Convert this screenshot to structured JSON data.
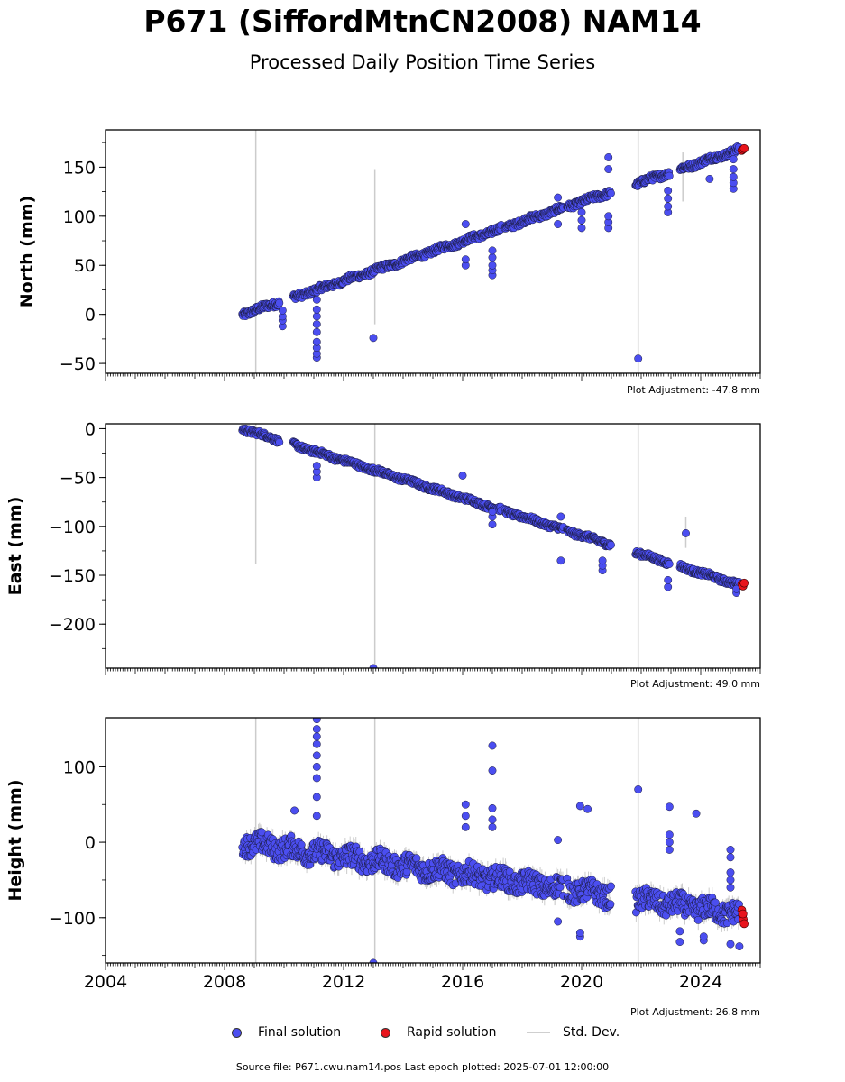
{
  "title": "P671 (SiffordMtnCN2008) NAM14",
  "subtitle": "Processed Daily Position Time Series",
  "colors": {
    "final": "#4b4ef0",
    "rapid": "#e8141c",
    "stddev": "#cccccc"
  },
  "chart_data": {
    "type": "scatter",
    "x_ticks": [
      "2004",
      "2008",
      "2012",
      "2016",
      "2020",
      "2024"
    ],
    "xlim": [
      2004.0,
      2026.0
    ],
    "panels": [
      {
        "ylabel": "North (mm)",
        "ylim": [
          -60,
          188
        ],
        "yticks": [
          150,
          100,
          50,
          0,
          -50
        ],
        "ytick_labels": [
          "150",
          "100",
          "50",
          "0",
          "−50"
        ],
        "plot_adjustment": "Plot Adjustment: -47.8 mm",
        "trend": [
          [
            2008.6,
            0
          ],
          [
            2025.3,
            168
          ]
        ],
        "noise": 3,
        "gaps": [
          [
            2009.85,
            2010.3
          ],
          [
            2017.3,
            2017.4
          ],
          [
            2019.4,
            2019.5
          ],
          [
            2021.0,
            2021.8
          ],
          [
            2022.95,
            2023.3
          ]
        ],
        "excursions": [
          {
            "t": 2009.95,
            "vals": [
              -12,
              -6,
              -2,
              4
            ]
          },
          {
            "t": 2011.1,
            "vals": [
              -44,
              -40,
              -34,
              -28,
              -18,
              -10,
              -2,
              5,
              15
            ]
          },
          {
            "t": 2013.0,
            "vals": [
              -24
            ]
          },
          {
            "t": 2016.1,
            "vals": [
              50,
              56,
              92
            ]
          },
          {
            "t": 2017.0,
            "vals": [
              40,
              45,
              50,
              58,
              65
            ]
          },
          {
            "t": 2019.2,
            "vals": [
              92,
              119
            ]
          },
          {
            "t": 2020.0,
            "vals": [
              88,
              96,
              104
            ]
          },
          {
            "t": 2020.9,
            "vals": [
              88,
              94,
              100,
              148,
              160
            ]
          },
          {
            "t": 2021.9,
            "vals": [
              -45
            ]
          },
          {
            "t": 2022.9,
            "vals": [
              104,
              110,
              118,
              126
            ]
          },
          {
            "t": 2024.3,
            "vals": [
              138
            ]
          },
          {
            "t": 2025.1,
            "vals": [
              128,
              134,
              140,
              148,
              158
            ]
          }
        ],
        "stddev_bars": [
          [
            2009.05,
            -60,
            188
          ],
          [
            2013.05,
            -10,
            148
          ],
          [
            2021.9,
            -60,
            188
          ],
          [
            2023.4,
            115,
            165
          ]
        ],
        "rapid": [
          [
            2025.38,
            167
          ],
          [
            2025.42,
            168
          ],
          [
            2025.46,
            169
          ]
        ]
      },
      {
        "ylabel": "East (mm)",
        "ylim": [
          -245,
          5
        ],
        "yticks": [
          0,
          -50,
          -100,
          -150,
          -200
        ],
        "ytick_labels": [
          "0",
          "−50",
          "−100",
          "−150",
          "−200"
        ],
        "plot_adjustment": "Plot Adjustment: 49.0 mm",
        "trend": [
          [
            2008.6,
            0
          ],
          [
            2025.3,
            -160
          ]
        ],
        "noise": 2.5,
        "gaps": [
          [
            2009.85,
            2010.3
          ],
          [
            2017.3,
            2017.4
          ],
          [
            2019.4,
            2019.5
          ],
          [
            2021.0,
            2021.8
          ],
          [
            2022.95,
            2023.3
          ]
        ],
        "excursions": [
          {
            "t": 2011.1,
            "vals": [
              -50,
              -44,
              -38
            ]
          },
          {
            "t": 2013.0,
            "vals": [
              -245
            ]
          },
          {
            "t": 2016.0,
            "vals": [
              -48
            ]
          },
          {
            "t": 2017.0,
            "vals": [
              -98,
              -90,
              -85
            ]
          },
          {
            "t": 2019.3,
            "vals": [
              -135,
              -90
            ]
          },
          {
            "t": 2020.7,
            "vals": [
              -145,
              -140,
              -135
            ]
          },
          {
            "t": 2022.9,
            "vals": [
              -162,
              -155
            ]
          },
          {
            "t": 2023.5,
            "vals": [
              -107
            ]
          },
          {
            "t": 2025.2,
            "vals": [
              -168,
              -164
            ]
          }
        ],
        "stddev_bars": [
          [
            2009.05,
            -138,
            5
          ],
          [
            2013.05,
            -245,
            5
          ],
          [
            2021.9,
            -245,
            5
          ],
          [
            2023.5,
            -122,
            -90
          ]
        ],
        "rapid": [
          [
            2025.38,
            -159
          ],
          [
            2025.42,
            -161
          ],
          [
            2025.46,
            -158
          ]
        ]
      },
      {
        "ylabel": "Height (mm)",
        "ylim": [
          -160,
          165
        ],
        "yticks": [
          100,
          0,
          -100
        ],
        "ytick_labels": [
          "100",
          "0",
          "−100"
        ],
        "plot_adjustment": "Plot Adjustment: 26.8 mm",
        "trend": [
          [
            2008.6,
            0
          ],
          [
            2025.3,
            -95
          ]
        ],
        "noise": 14,
        "gaps": [
          [
            2019.4,
            2019.5
          ],
          [
            2021.0,
            2021.8
          ]
        ],
        "excursions": [
          {
            "t": 2010.35,
            "vals": [
              42
            ]
          },
          {
            "t": 2011.1,
            "vals": [
              35,
              60,
              85,
              100,
              115,
              130,
              140,
              150,
              163
            ]
          },
          {
            "t": 2013.0,
            "vals": [
              -160
            ]
          },
          {
            "t": 2016.1,
            "vals": [
              20,
              35,
              50
            ]
          },
          {
            "t": 2017.0,
            "vals": [
              20,
              30,
              45,
              95,
              128
            ]
          },
          {
            "t": 2019.2,
            "vals": [
              -105,
              3
            ]
          },
          {
            "t": 2019.95,
            "vals": [
              -125,
              -120,
              48
            ]
          },
          {
            "t": 2020.2,
            "vals": [
              44
            ]
          },
          {
            "t": 2021.9,
            "vals": [
              70
            ]
          },
          {
            "t": 2022.95,
            "vals": [
              -10,
              0,
              10,
              47
            ]
          },
          {
            "t": 2023.3,
            "vals": [
              -132,
              -118
            ]
          },
          {
            "t": 2023.85,
            "vals": [
              38
            ]
          },
          {
            "t": 2024.1,
            "vals": [
              -130,
              -125
            ]
          },
          {
            "t": 2025.0,
            "vals": [
              -135,
              -60,
              -50,
              -40,
              -20,
              -10
            ]
          },
          {
            "t": 2025.3,
            "vals": [
              -138
            ]
          }
        ],
        "stddev_bars": [
          [
            2009.05,
            -160,
            165
          ],
          [
            2013.05,
            -160,
            165
          ],
          [
            2021.9,
            -160,
            165
          ]
        ],
        "rapid": [
          [
            2025.38,
            -90
          ],
          [
            2025.4,
            -96
          ],
          [
            2025.43,
            -102
          ],
          [
            2025.46,
            -108
          ],
          [
            2025.42,
            -95
          ]
        ]
      }
    ],
    "legend": [
      "Final solution",
      "Rapid solution",
      "Std. Dev."
    ]
  },
  "footer": {
    "source": "Source file: P671.cwu.nam14.pos  Last epoch plotted: 2025-07-01 12:00:00"
  }
}
